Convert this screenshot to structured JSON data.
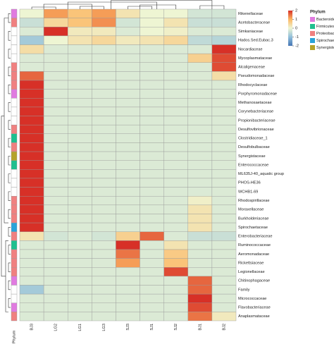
{
  "chart_data": {
    "type": "heatmap",
    "x": [
      "BJ3",
      "LG2",
      "LG1",
      "LG3",
      "SJ3",
      "SJ1",
      "SJ2",
      "BJ1",
      "BJ2"
    ],
    "y": [
      "Rikenellaceae",
      "Acetobacteraceae",
      "Simkaniaceae",
      "Hados.Sed.Eubac.3",
      "Nocardiaceae",
      "Mycoplasmataceae",
      "Alcaligenaceae",
      "Pseudomonadaceae",
      "Rhodocyclaceae",
      "Porphyromonadaceae",
      "Methanosaetaceae",
      "Corynebacteriaceae",
      "Propionibacteriaceae",
      "Desulfovibrionaceae",
      "Clostridiaceae_1",
      "Desulfobulbaceae",
      "Synergistaceae",
      "Enterococcaceae",
      "ML635J-40_aquatic group",
      "PHOS-HE36",
      "WCHB1-69",
      "Rhodospirillaceae",
      "Moraxellaceae",
      "Burkholderiaceae",
      "Spirochaetaceae",
      "Enterobacteriaceae",
      "Ruminococcaceae",
      "Aeromonadaceae",
      "Rickettsiaceae",
      "Legionellaceae",
      "Chitinophagaceae",
      "Family",
      "Micrococcaceae",
      "Flavobacteriaceae",
      "Anaplasmataceae"
    ],
    "z": [
      [
        0,
        1.2,
        0.8,
        1.2,
        0.3,
        0,
        0,
        -0.3,
        -0.3
      ],
      [
        -0.4,
        0.5,
        0.8,
        1.3,
        -0.3,
        0,
        0.3,
        -0.4,
        -0.4
      ],
      [
        -0.2,
        2,
        0.2,
        0.2,
        -0.2,
        0,
        0.1,
        -0.2,
        -0.2
      ],
      [
        -0.8,
        0,
        0.3,
        0.5,
        0.2,
        0.3,
        0.5,
        -0.5,
        -0.6
      ],
      [
        0.4,
        -0.2,
        -0.2,
        -0.2,
        -0.2,
        -0.2,
        -0.2,
        -0.2,
        2
      ],
      [
        -0.2,
        -0.2,
        -0.2,
        -0.2,
        -0.2,
        -0.2,
        -0.2,
        0.6,
        1.8
      ],
      [
        -0.2,
        -0.2,
        -0.2,
        -0.2,
        -0.2,
        -0.2,
        -0.2,
        -0.2,
        1.8
      ],
      [
        1.6,
        -0.2,
        -0.2,
        -0.2,
        -0.2,
        -0.2,
        -0.2,
        -0.2,
        0.4
      ],
      [
        2,
        -0.2,
        -0.2,
        -0.2,
        -0.2,
        -0.2,
        -0.2,
        -0.2,
        -0.2
      ],
      [
        2,
        -0.2,
        -0.2,
        -0.2,
        -0.2,
        -0.2,
        -0.2,
        -0.2,
        -0.2
      ],
      [
        2,
        -0.2,
        -0.2,
        -0.2,
        -0.2,
        -0.2,
        -0.2,
        -0.2,
        -0.2
      ],
      [
        2,
        -0.2,
        -0.2,
        -0.2,
        -0.2,
        -0.2,
        -0.2,
        -0.2,
        -0.2
      ],
      [
        2,
        -0.2,
        -0.2,
        -0.2,
        -0.2,
        -0.2,
        -0.2,
        -0.2,
        -0.2
      ],
      [
        2,
        -0.2,
        -0.2,
        -0.2,
        -0.2,
        -0.2,
        -0.2,
        -0.2,
        -0.2
      ],
      [
        2,
        -0.2,
        -0.2,
        -0.2,
        -0.2,
        -0.2,
        -0.2,
        -0.2,
        -0.2
      ],
      [
        2,
        -0.2,
        -0.2,
        -0.2,
        -0.2,
        -0.2,
        -0.2,
        -0.2,
        -0.2
      ],
      [
        2,
        -0.2,
        -0.2,
        -0.2,
        -0.2,
        -0.2,
        -0.2,
        -0.2,
        -0.2
      ],
      [
        2,
        -0.2,
        -0.2,
        -0.2,
        -0.2,
        -0.2,
        -0.2,
        -0.2,
        -0.2
      ],
      [
        2,
        -0.2,
        -0.2,
        -0.2,
        -0.2,
        -0.2,
        -0.2,
        -0.2,
        -0.2
      ],
      [
        2,
        -0.2,
        -0.2,
        -0.2,
        -0.2,
        -0.2,
        -0.2,
        -0.2,
        -0.2
      ],
      [
        2,
        -0.2,
        -0.2,
        -0.2,
        -0.2,
        -0.2,
        -0.2,
        -0.2,
        -0.2
      ],
      [
        2,
        -0.2,
        -0.2,
        -0.2,
        -0.2,
        -0.2,
        -0.2,
        0.1,
        -0.2
      ],
      [
        2,
        -0.2,
        -0.2,
        -0.2,
        -0.2,
        -0.2,
        -0.2,
        0.3,
        -0.2
      ],
      [
        2,
        -0.2,
        -0.2,
        -0.2,
        -0.2,
        -0.2,
        -0.2,
        0.3,
        -0.2
      ],
      [
        2,
        -0.2,
        -0.2,
        -0.2,
        -0.2,
        -0.2,
        -0.2,
        0.3,
        -0.2
      ],
      [
        0.3,
        -0.3,
        -0.2,
        -0.3,
        0.6,
        1.6,
        -0.2,
        -0.4,
        -0.4
      ],
      [
        -0.2,
        -0.2,
        -0.2,
        -0.2,
        2,
        -0.2,
        0.3,
        -0.2,
        -0.2
      ],
      [
        -0.2,
        -0.2,
        -0.2,
        -0.2,
        1.5,
        -0.2,
        0.7,
        -0.2,
        -0.2
      ],
      [
        -0.2,
        -0.2,
        -0.2,
        -0.2,
        1.2,
        -0.2,
        0.8,
        -0.2,
        -0.2
      ],
      [
        -0.2,
        -0.2,
        -0.2,
        -0.2,
        -0.2,
        -0.2,
        1.8,
        -0.2,
        -0.2
      ],
      [
        -0.2,
        -0.2,
        -0.2,
        -0.2,
        -0.2,
        -0.2,
        -0.2,
        1.6,
        -0.2
      ],
      [
        -0.8,
        -0.2,
        -0.2,
        -0.2,
        -0.2,
        -0.2,
        -0.2,
        1.6,
        -0.2
      ],
      [
        -0.2,
        -0.2,
        -0.2,
        -0.2,
        -0.2,
        -0.2,
        -0.2,
        2,
        -0.2
      ],
      [
        -0.2,
        -0.2,
        -0.2,
        -0.2,
        -0.2,
        -0.2,
        -0.2,
        1.8,
        -0.2
      ],
      [
        -0.2,
        -0.2,
        -0.2,
        -0.2,
        -0.2,
        -0.2,
        -0.2,
        1.5,
        0.2
      ]
    ],
    "zlim": [
      -2,
      2
    ],
    "zticks": [
      2,
      1,
      0,
      -1,
      -2
    ],
    "colors": [
      "#4575b4",
      "#91bfdb",
      "#eef5d3",
      "#fdb863",
      "#d73027"
    ],
    "annotation_label": "Phylum",
    "annotation_legend": [
      {
        "name": "Bacteroidetes",
        "color": "#e07be0"
      },
      {
        "name": "Firmicutes",
        "color": "#1fbf8f"
      },
      {
        "name": "Proteobacteria",
        "color": "#f08080"
      },
      {
        "name": "Spirochaetae",
        "color": "#29a3d9"
      },
      {
        "name": "Synergistetes",
        "color": "#b5a32a"
      }
    ],
    "phylum": [
      "Bacteroidetes",
      "Proteobacteria",
      null,
      null,
      null,
      null,
      "Proteobacteria",
      "Proteobacteria",
      "Proteobacteria",
      "Bacteroidetes",
      null,
      null,
      null,
      "Proteobacteria",
      "Firmicutes",
      "Proteobacteria",
      "Synergistetes",
      "Firmicutes",
      null,
      null,
      null,
      "Proteobacteria",
      "Proteobacteria",
      "Proteobacteria",
      "Spirochaetae",
      "Proteobacteria",
      "Firmicutes",
      "Proteobacteria",
      "Proteobacteria",
      "Proteobacteria",
      "Bacteroidetes",
      null,
      null,
      "Bacteroidetes",
      "Proteobacteria"
    ]
  }
}
